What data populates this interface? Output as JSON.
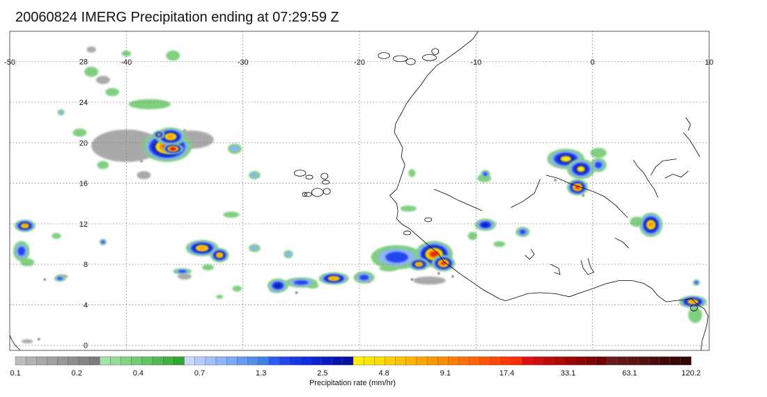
{
  "title": "20060824 IMERG Precipitation ending at 07:29:59 Z",
  "map": {
    "lon_range": [
      -50,
      10
    ],
    "lat_range": [
      -0.5,
      31
    ],
    "lon_ticks": [
      -50,
      -40,
      -30,
      -20,
      -10,
      0,
      10
    ],
    "lat_ticks": [
      0,
      4,
      8,
      12,
      16,
      20,
      24,
      28
    ],
    "lon_tick_labels": [
      "-50",
      "-40",
      "-30",
      "-20",
      "-10",
      "0",
      "10"
    ],
    "lat_tick_labels": [
      "0",
      "4",
      "8",
      "12",
      "16",
      "20",
      "24",
      "28"
    ],
    "grid": true,
    "coastline_color": "#000000"
  },
  "colorbar": {
    "label": "Precipitation rate (mm/hr)",
    "tick_labels": [
      "0.1",
      "0.2",
      "0.4",
      "0.7",
      "1.3",
      "2.5",
      "4.8",
      "9.1",
      "17.4",
      "33.1",
      "63.1",
      "120.2"
    ],
    "colors": [
      "#bdbdbd",
      "#b3b3b3",
      "#a9a9a9",
      "#a0a0a0",
      "#979797",
      "#8e8e8e",
      "#858585",
      "#7c7c7c",
      "#a6e3a6",
      "#95db95",
      "#84d384",
      "#73cb73",
      "#62c362",
      "#51bb51",
      "#40b340",
      "#30a830",
      "#c8d8ff",
      "#b6ccff",
      "#a4c0fb",
      "#8fb4f7",
      "#7aa8f3",
      "#669cef",
      "#528fea",
      "#3f82e5",
      "#2d5cf5",
      "#2247f0",
      "#1738ea",
      "#0f2ce0",
      "#0a22d4",
      "#071bc4",
      "#0516b0",
      "#03129c",
      "#fff000",
      "#ffe600",
      "#ffdc00",
      "#ffd000",
      "#ffc200",
      "#ffb400",
      "#ffa600",
      "#ff9800",
      "#ff8c00",
      "#ff7e00",
      "#ff7000",
      "#ff6200",
      "#ff5400",
      "#ff4600",
      "#ff3800",
      "#ff2a00",
      "#e01010",
      "#d00c0c",
      "#c00808",
      "#b00606",
      "#a00404",
      "#900303",
      "#800202",
      "#700101",
      "#6a1a1a",
      "#621616",
      "#5a1212",
      "#520f0f",
      "#4a0c0c",
      "#420a0a",
      "#3a0808",
      "#330606"
    ]
  },
  "precip_palette": {
    "gray": "#a9a9a9",
    "green": "#7fcf7f",
    "lightblue": "#8fb4f7",
    "blue": "#2247f0",
    "darkblue": "#0a1cbe",
    "yellow": "#ffe600",
    "orange": "#ff9a00",
    "red": "#f02810",
    "darkred": "#b40a0a"
  },
  "precip_cells": [
    {
      "lon": -36.5,
      "lat": 19.6,
      "rx": 2.1,
      "ry": 1.5,
      "peak": "red"
    },
    {
      "lon": -36.2,
      "lat": 20.6,
      "rx": 1.3,
      "ry": 0.9,
      "peak": "orange"
    },
    {
      "lon": -33.5,
      "lat": 9.6,
      "rx": 1.4,
      "ry": 0.8,
      "peak": "orange"
    },
    {
      "lon": -32.0,
      "lat": 8.9,
      "rx": 0.8,
      "ry": 0.7,
      "peak": "orange"
    },
    {
      "lon": -48.7,
      "lat": 11.8,
      "rx": 0.9,
      "ry": 0.6,
      "peak": "orange"
    },
    {
      "lon": -49.0,
      "lat": 9.3,
      "rx": 0.7,
      "ry": 1.0,
      "peak": "blue"
    },
    {
      "lon": -35.2,
      "lat": 7.3,
      "rx": 0.8,
      "ry": 0.3,
      "peak": "blue"
    },
    {
      "lon": -45.7,
      "lat": 6.6,
      "rx": 0.5,
      "ry": 0.3,
      "peak": "blue"
    },
    {
      "lon": -27.0,
      "lat": 5.9,
      "rx": 0.9,
      "ry": 0.7,
      "peak": "darkblue"
    },
    {
      "lon": -25.0,
      "lat": 6.2,
      "rx": 1.4,
      "ry": 0.5,
      "peak": "blue"
    },
    {
      "lon": -22.2,
      "lat": 6.6,
      "rx": 1.3,
      "ry": 0.6,
      "peak": "orange"
    },
    {
      "lon": -19.6,
      "lat": 6.7,
      "rx": 0.9,
      "ry": 0.6,
      "peak": "blue"
    },
    {
      "lon": -16.8,
      "lat": 8.7,
      "rx": 2.2,
      "ry": 1.2,
      "peak": "blue"
    },
    {
      "lon": -13.6,
      "lat": 9.0,
      "rx": 1.6,
      "ry": 1.3,
      "peak": "red"
    },
    {
      "lon": -12.8,
      "lat": 8.1,
      "rx": 1.0,
      "ry": 0.8,
      "peak": "red"
    },
    {
      "lon": -14.9,
      "lat": 8.0,
      "rx": 0.9,
      "ry": 0.6,
      "peak": "orange"
    },
    {
      "lon": -9.2,
      "lat": 11.9,
      "rx": 0.9,
      "ry": 0.6,
      "peak": "darkblue"
    },
    {
      "lon": -6.0,
      "lat": 11.2,
      "rx": 0.6,
      "ry": 0.5,
      "peak": "blue"
    },
    {
      "lon": -2.3,
      "lat": 18.4,
      "rx": 1.6,
      "ry": 1.0,
      "peak": "yellow"
    },
    {
      "lon": -1.0,
      "lat": 17.4,
      "rx": 1.2,
      "ry": 1.0,
      "peak": "yellow"
    },
    {
      "lon": -1.3,
      "lat": 15.6,
      "rx": 0.9,
      "ry": 0.8,
      "peak": "red"
    },
    {
      "lon": 0.5,
      "lat": 17.8,
      "rx": 0.7,
      "ry": 0.7,
      "peak": "blue"
    },
    {
      "lon": -9.2,
      "lat": 16.9,
      "rx": 0.4,
      "ry": 0.4,
      "peak": "blue"
    },
    {
      "lon": 5.0,
      "lat": 11.9,
      "rx": 1.0,
      "ry": 1.2,
      "peak": "orange"
    },
    {
      "lon": 8.6,
      "lat": 4.3,
      "rx": 1.2,
      "ry": 0.6,
      "peak": "orange"
    },
    {
      "lon": 8.9,
      "lat": 6.2,
      "rx": 0.3,
      "ry": 0.3,
      "peak": "blue"
    },
    {
      "lon": -48.5,
      "lat": 8.2,
      "rx": 0.6,
      "ry": 0.4,
      "peak": "green"
    },
    {
      "lon": -42.0,
      "lat": 10.2,
      "rx": 0.3,
      "ry": 0.3,
      "peak": "blue"
    },
    {
      "lon": -45.6,
      "lat": 23.0,
      "rx": 0.3,
      "ry": 0.3,
      "peak": "lightblue"
    },
    {
      "lon": -29.0,
      "lat": 16.8,
      "rx": 0.5,
      "ry": 0.4,
      "peak": "lightblue"
    },
    {
      "lon": -30.7,
      "lat": 19.4,
      "rx": 0.6,
      "ry": 0.5,
      "peak": "lightblue"
    },
    {
      "lon": -29.0,
      "lat": 9.6,
      "rx": 0.5,
      "ry": 0.4,
      "peak": "lightblue"
    },
    {
      "lon": -26.1,
      "lat": 9.0,
      "rx": 0.4,
      "ry": 0.4,
      "peak": "lightblue"
    },
    {
      "lon": -37.2,
      "lat": 20.8,
      "rx": 0.5,
      "ry": 0.4,
      "peak": "yellow"
    },
    {
      "lon": -36.0,
      "lat": 19.4,
      "rx": 0.9,
      "ry": 0.5,
      "peak": "darkred"
    }
  ],
  "light_patches": [
    {
      "lon": -40.0,
      "lat": 19.7,
      "rx": 3.0,
      "ry": 1.6,
      "c": "gray"
    },
    {
      "lon": -34.5,
      "lat": 20.3,
      "rx": 2.0,
      "ry": 0.9,
      "c": "gray"
    },
    {
      "lon": -38.0,
      "lat": 23.8,
      "rx": 1.8,
      "ry": 0.5,
      "c": "green"
    },
    {
      "lon": -41.2,
      "lat": 25.0,
      "rx": 0.6,
      "ry": 0.4,
      "c": "green"
    },
    {
      "lon": -42.0,
      "lat": 26.2,
      "rx": 0.6,
      "ry": 0.4,
      "c": "gray"
    },
    {
      "lon": -44.0,
      "lat": 21.0,
      "rx": 0.6,
      "ry": 0.4,
      "c": "green"
    },
    {
      "lon": -38.5,
      "lat": 16.8,
      "rx": 0.6,
      "ry": 0.4,
      "c": "gray"
    },
    {
      "lon": -42.0,
      "lat": 17.8,
      "rx": 0.5,
      "ry": 0.4,
      "c": "green"
    },
    {
      "lon": -43.0,
      "lat": 27.0,
      "rx": 0.6,
      "ry": 0.5,
      "c": "green"
    },
    {
      "lon": -36.0,
      "lat": 28.6,
      "rx": 0.6,
      "ry": 0.5,
      "c": "green"
    },
    {
      "lon": -40.0,
      "lat": 28.8,
      "rx": 0.4,
      "ry": 0.3,
      "c": "green"
    },
    {
      "lon": -43.0,
      "lat": 29.2,
      "rx": 0.4,
      "ry": 0.3,
      "c": "gray"
    },
    {
      "lon": -31.0,
      "lat": 12.9,
      "rx": 0.7,
      "ry": 0.3,
      "c": "green"
    },
    {
      "lon": -35.0,
      "lat": 6.8,
      "rx": 0.6,
      "ry": 0.3,
      "c": "gray"
    },
    {
      "lon": -33.0,
      "lat": 7.7,
      "rx": 0.5,
      "ry": 0.3,
      "c": "green"
    },
    {
      "lon": -30.5,
      "lat": 5.6,
      "rx": 0.4,
      "ry": 0.3,
      "c": "green"
    },
    {
      "lon": -27.2,
      "lat": 5.5,
      "rx": 0.5,
      "ry": 0.3,
      "c": "lightblue"
    },
    {
      "lon": -24.0,
      "lat": 5.9,
      "rx": 0.5,
      "ry": 0.3,
      "c": "green"
    },
    {
      "lon": -17.5,
      "lat": 7.6,
      "rx": 0.8,
      "ry": 0.3,
      "c": "green"
    },
    {
      "lon": -14.0,
      "lat": 6.4,
      "rx": 1.4,
      "ry": 0.4,
      "c": "gray"
    },
    {
      "lon": -10.3,
      "lat": 10.8,
      "rx": 0.4,
      "ry": 0.4,
      "c": "green"
    },
    {
      "lon": -8.0,
      "lat": 10.0,
      "rx": 0.5,
      "ry": 0.3,
      "c": "green"
    },
    {
      "lon": -15.8,
      "lat": 13.5,
      "rx": 0.7,
      "ry": 0.3,
      "c": "green"
    },
    {
      "lon": -15.5,
      "lat": 17.0,
      "rx": 0.3,
      "ry": 0.4,
      "c": "green"
    },
    {
      "lon": -9.3,
      "lat": 16.5,
      "rx": 0.6,
      "ry": 0.4,
      "c": "green"
    },
    {
      "lon": 0.5,
      "lat": 19.0,
      "rx": 0.7,
      "ry": 0.5,
      "c": "green"
    },
    {
      "lon": 3.8,
      "lat": 12.2,
      "rx": 0.6,
      "ry": 0.5,
      "c": "green"
    },
    {
      "lon": 8.8,
      "lat": 3.0,
      "rx": 0.6,
      "ry": 0.8,
      "c": "green"
    },
    {
      "lon": -48.5,
      "lat": 0.4,
      "rx": 0.5,
      "ry": 0.2,
      "c": "gray"
    },
    {
      "lon": -45.5,
      "lat": 6.8,
      "rx": 0.5,
      "ry": 0.2,
      "c": "gray"
    },
    {
      "lon": -46.0,
      "lat": 10.8,
      "rx": 0.4,
      "ry": 0.3,
      "c": "green"
    },
    {
      "lon": -32.0,
      "lat": 4.8,
      "rx": 0.3,
      "ry": 0.2,
      "c": "green"
    }
  ]
}
